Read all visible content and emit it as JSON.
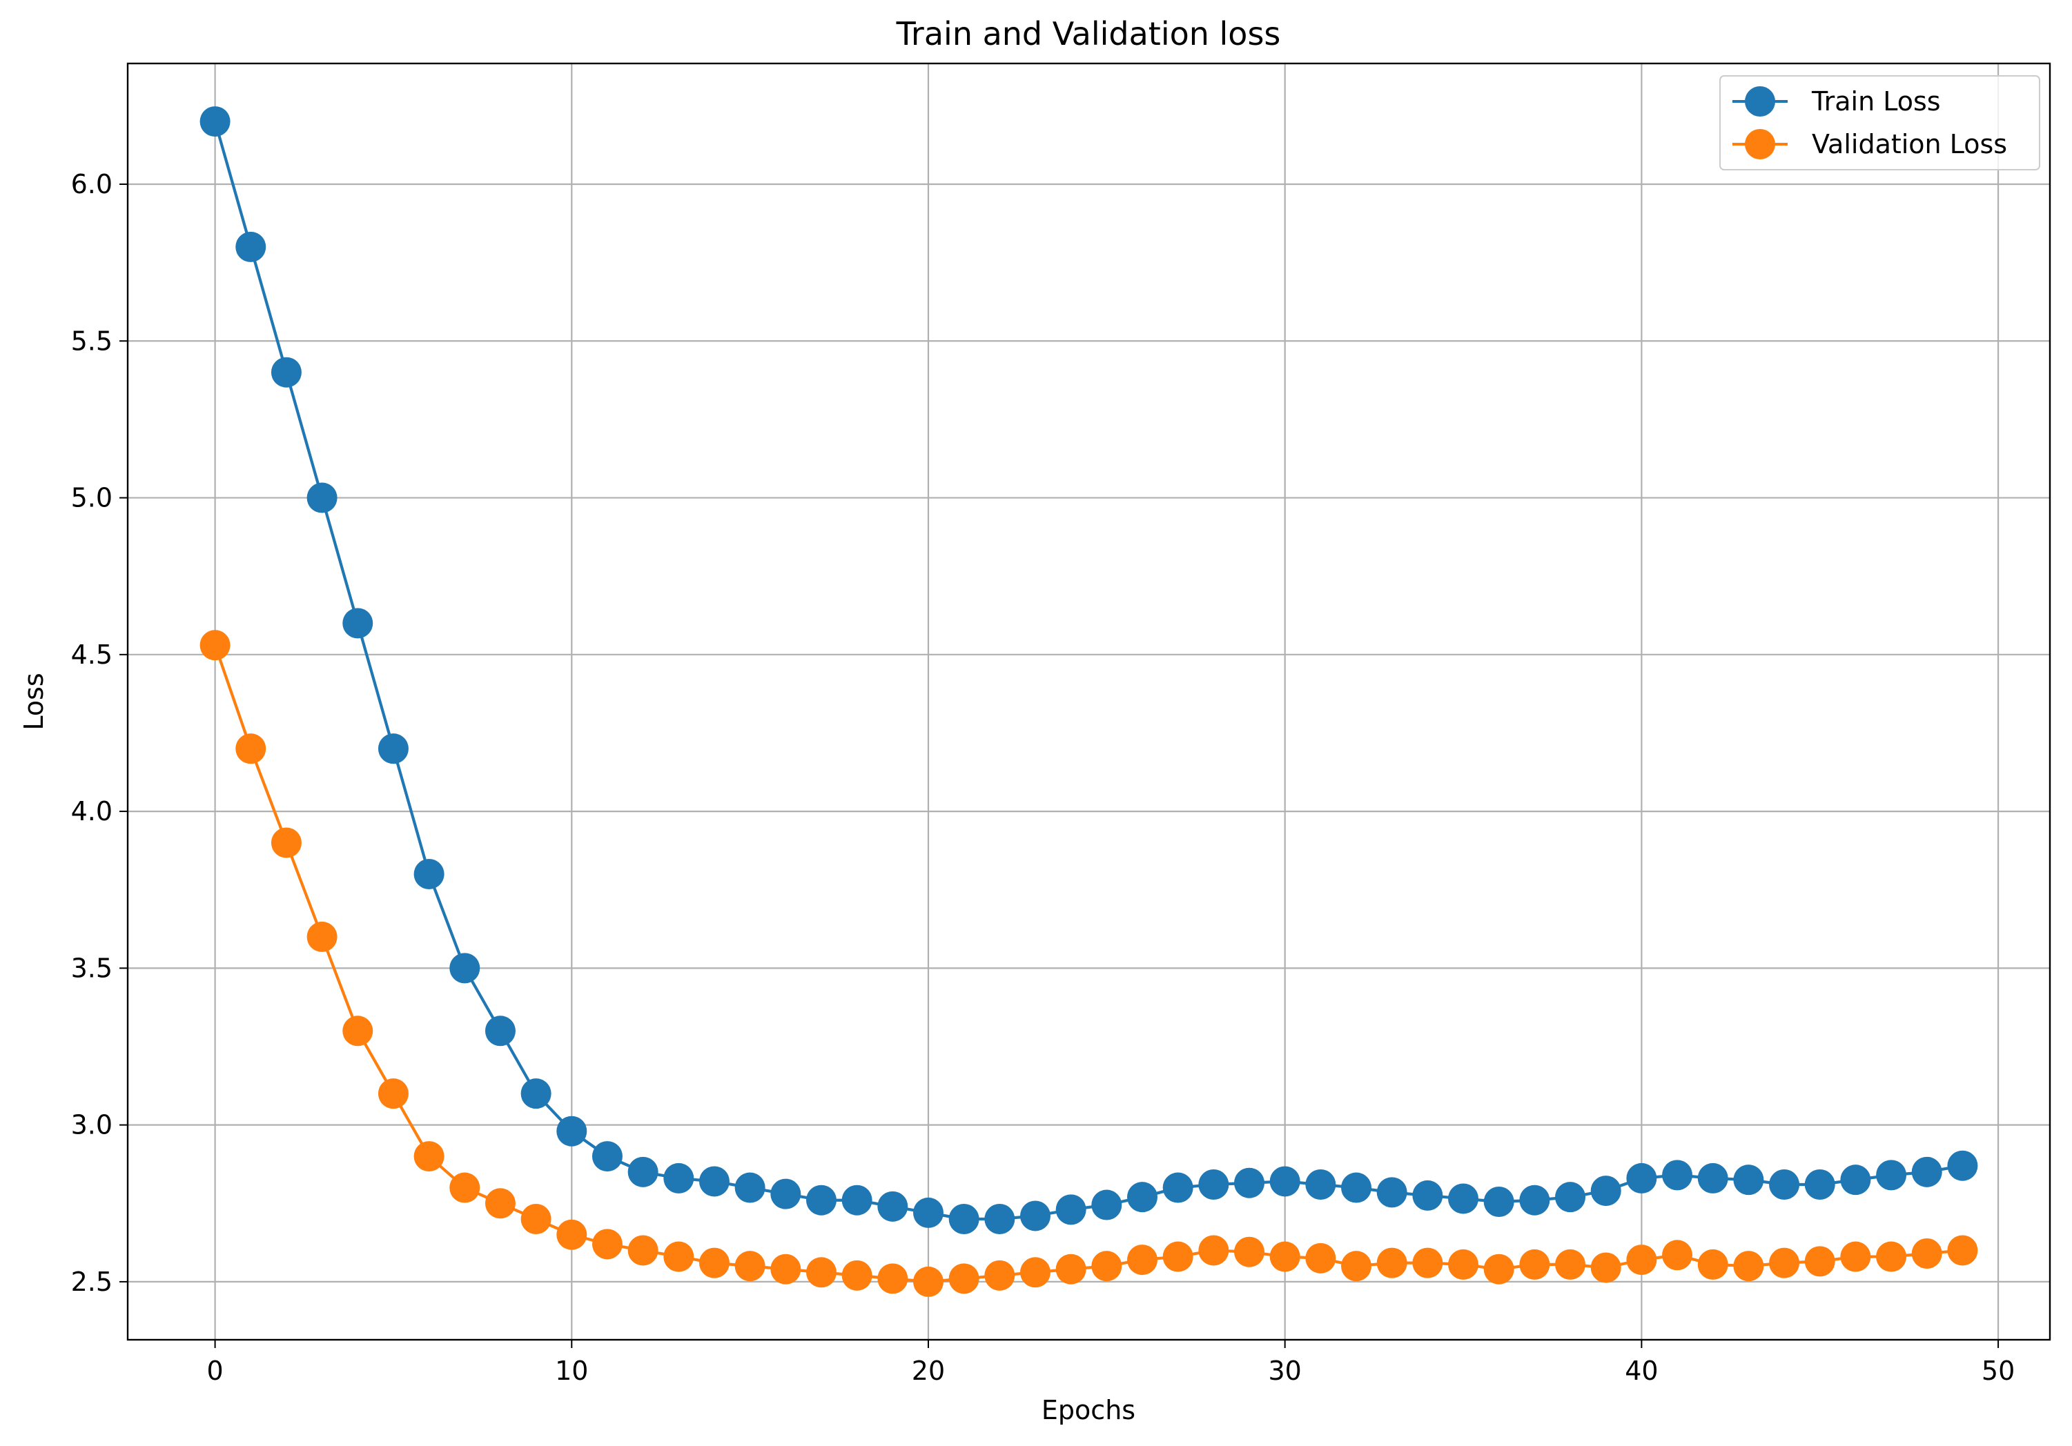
{
  "chart_data": {
    "type": "line",
    "title": "Train and Validation loss",
    "xlabel": "Epochs",
    "ylabel": "Loss",
    "xlim": [
      -2.45,
      51.45
    ],
    "ylim": [
      2.315,
      6.385
    ],
    "xticks": [
      0,
      10,
      20,
      30,
      40,
      50
    ],
    "xtick_labels": [
      "0",
      "10",
      "20",
      "30",
      "40",
      "50"
    ],
    "yticks": [
      2.5,
      3.0,
      3.5,
      4.0,
      4.5,
      5.0,
      5.5,
      6.0
    ],
    "ytick_labels": [
      "2.5",
      "3.0",
      "3.5",
      "4.0",
      "4.5",
      "5.0",
      "5.5",
      "6.0"
    ],
    "grid": true,
    "legend_position": "top-right",
    "x": [
      0,
      1,
      2,
      3,
      4,
      5,
      6,
      7,
      8,
      9,
      10,
      11,
      12,
      13,
      14,
      15,
      16,
      17,
      18,
      19,
      20,
      21,
      22,
      23,
      24,
      25,
      26,
      27,
      28,
      29,
      30,
      31,
      32,
      33,
      34,
      35,
      36,
      37,
      38,
      39,
      40,
      41,
      42,
      43,
      44,
      45,
      46,
      47,
      48,
      49
    ],
    "series": [
      {
        "name": "Train Loss",
        "color": "#1f77b4",
        "values": [
          6.2,
          5.8,
          5.4,
          5.0,
          4.6,
          4.2,
          3.8,
          3.5,
          3.3,
          3.1,
          2.98,
          2.9,
          2.85,
          2.83,
          2.82,
          2.8,
          2.78,
          2.76,
          2.76,
          2.74,
          2.72,
          2.7,
          2.7,
          2.71,
          2.73,
          2.745,
          2.77,
          2.8,
          2.81,
          2.815,
          2.82,
          2.81,
          2.8,
          2.785,
          2.775,
          2.765,
          2.755,
          2.76,
          2.77,
          2.79,
          2.83,
          2.84,
          2.83,
          2.825,
          2.81,
          2.81,
          2.825,
          2.84,
          2.85,
          2.87
        ]
      },
      {
        "name": "Validation Loss",
        "color": "#ff7f0e",
        "values": [
          4.53,
          4.2,
          3.9,
          3.6,
          3.3,
          3.1,
          2.9,
          2.8,
          2.75,
          2.7,
          2.65,
          2.62,
          2.6,
          2.58,
          2.56,
          2.55,
          2.54,
          2.53,
          2.52,
          2.51,
          2.5,
          2.51,
          2.52,
          2.53,
          2.54,
          2.55,
          2.57,
          2.58,
          2.6,
          2.595,
          2.58,
          2.575,
          2.55,
          2.56,
          2.56,
          2.555,
          2.54,
          2.555,
          2.555,
          2.545,
          2.57,
          2.585,
          2.555,
          2.55,
          2.56,
          2.565,
          2.58,
          2.58,
          2.59,
          2.6
        ]
      }
    ]
  }
}
